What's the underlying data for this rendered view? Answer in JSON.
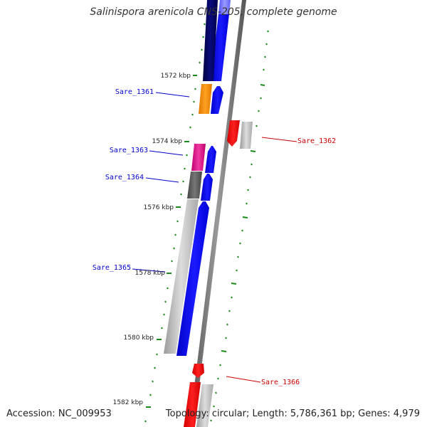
{
  "title": "Salinispora arenicola CNS-205, complete genome",
  "accession": "Accession: NC_009953",
  "topology": "Topology: circular; Length: 5,786,361 bp; Genes: 4,979",
  "colors": {
    "background": "#ffffff",
    "backbone": "#808080",
    "cds_forward": "#0000ff",
    "cds_reverse": "#ff0000",
    "gene_track_grey": "#b8b8b8",
    "gene_navy": "#000066",
    "gene_orange": "#ff8c00",
    "gene_magenta": "#e0148c",
    "gene_dark_grey": "#555555",
    "tick_green": "#1a8a1a",
    "label_forward": "#0000cc",
    "label_reverse": "#cc0000"
  },
  "scale_labels": [
    {
      "text": "1572 kbp",
      "kbp": 1572
    },
    {
      "text": "1574 kbp",
      "kbp": 1574
    },
    {
      "text": "1576 kbp",
      "kbp": 1576
    },
    {
      "text": "1578 kbp",
      "kbp": 1578
    },
    {
      "text": "1580 kbp",
      "kbp": 1580
    },
    {
      "text": "1582 kbp",
      "kbp": 1582
    }
  ],
  "genes": [
    {
      "label": "Sare_1361",
      "strand": "forward",
      "color": "orange"
    },
    {
      "label": "Sare_1362",
      "strand": "reverse",
      "color": "red"
    },
    {
      "label": "Sare_1363",
      "strand": "forward",
      "color": "magenta"
    },
    {
      "label": "Sare_1364",
      "strand": "forward",
      "color": "dark-grey"
    },
    {
      "label": "Sare_1365",
      "strand": "forward",
      "color": "light-grey"
    },
    {
      "label": "Sare_1366",
      "strand": "reverse",
      "color": "red"
    }
  ]
}
